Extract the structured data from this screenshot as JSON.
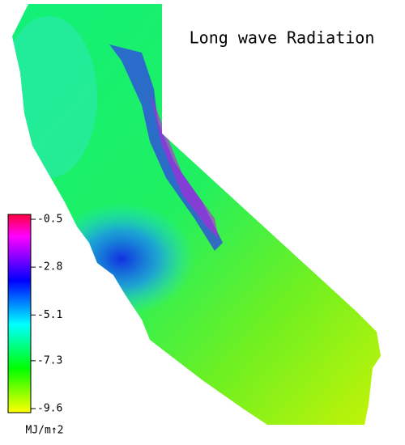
{
  "title": "Long wave Radiation",
  "colorbar": {
    "range": [
      -9.6,
      -0.5
    ],
    "ticks": [
      -0.5,
      -2.8,
      -5.1,
      -7.3,
      -9.6
    ],
    "colors": [
      "#ff0040",
      "#ff00ff",
      "#8000ff",
      "#0000ff",
      "#0080ff",
      "#00ffff",
      "#00ff80",
      "#00ff00",
      "#80ff00",
      "#ffff00"
    ],
    "unit": "MJ/m↑2"
  }
}
